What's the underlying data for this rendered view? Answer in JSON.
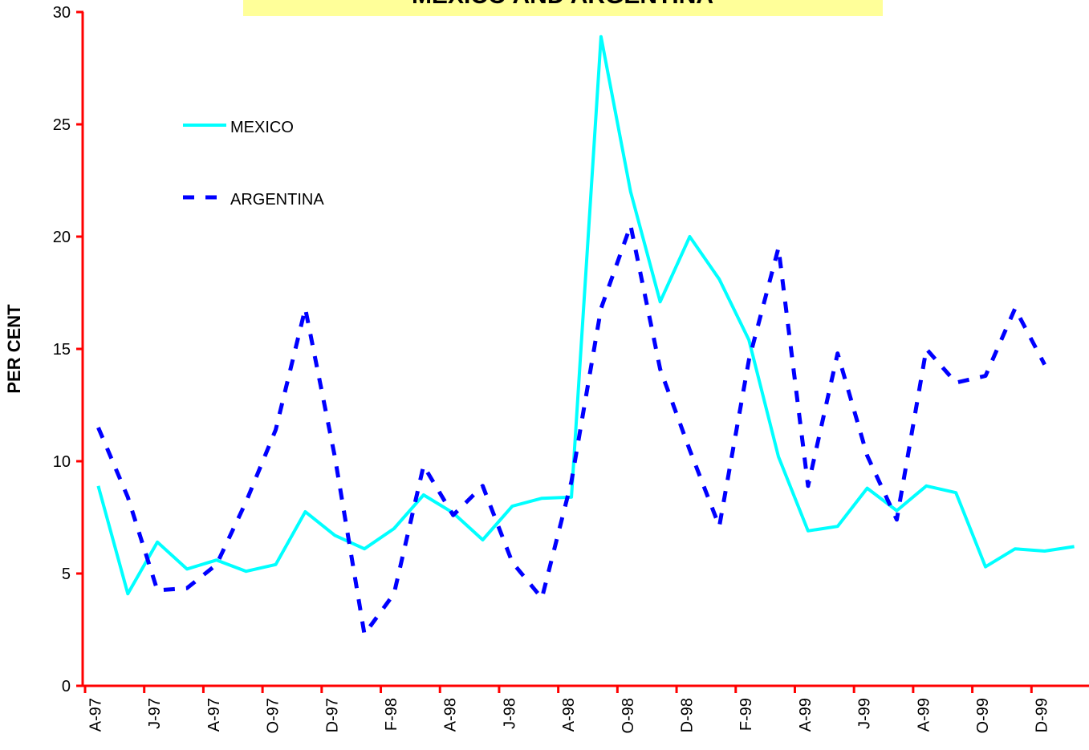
{
  "chart_data": {
    "type": "line",
    "title": "MEXICO AND ARGENTINA",
    "y_label": "PER CENT",
    "categories": [
      "A-97",
      null,
      "J-97",
      null,
      "A-97",
      null,
      "O-97",
      null,
      "D-97",
      null,
      "F-98",
      null,
      "A-98",
      null,
      "J-98",
      null,
      "A-98",
      null,
      "O-98",
      null,
      "D-98",
      null,
      "F-99",
      null,
      "A-99",
      null,
      "J-99",
      null,
      "A-99",
      null,
      "O-99",
      null,
      "D-99",
      null
    ],
    "series": [
      {
        "name": "MEXICO",
        "color": "#00ffff",
        "dash": false,
        "values": [
          8.9,
          4.1,
          6.4,
          5.2,
          5.6,
          5.1,
          5.4,
          7.75,
          6.7,
          6.1,
          7.0,
          8.5,
          7.7,
          6.5,
          8.0,
          8.35,
          8.4,
          28.9,
          22.0,
          17.1,
          20.0,
          18.1,
          15.4,
          10.2,
          6.9,
          7.1,
          8.8,
          7.8,
          8.9,
          8.6,
          5.3,
          6.1,
          6.0,
          6.2
        ]
      },
      {
        "name": "ARGENTINA",
        "color": "#0000ff",
        "dash": true,
        "values": [
          11.5,
          8.4,
          4.25,
          4.35,
          5.4,
          8.2,
          11.4,
          16.8,
          10.2,
          2.3,
          4.1,
          9.8,
          7.6,
          8.9,
          5.5,
          3.9,
          9.1,
          16.8,
          20.5,
          14.1,
          10.5,
          7.1,
          14.5,
          19.5,
          8.9,
          14.8,
          10.25,
          7.4,
          15.0,
          13.5,
          13.8,
          16.8,
          14.3,
          null
        ]
      }
    ],
    "ylim": [
      0,
      30
    ],
    "yticks": [
      0,
      5,
      10,
      15,
      20,
      25,
      30
    ],
    "axis_color": "#ff0000",
    "title_background": "#ffff99"
  }
}
